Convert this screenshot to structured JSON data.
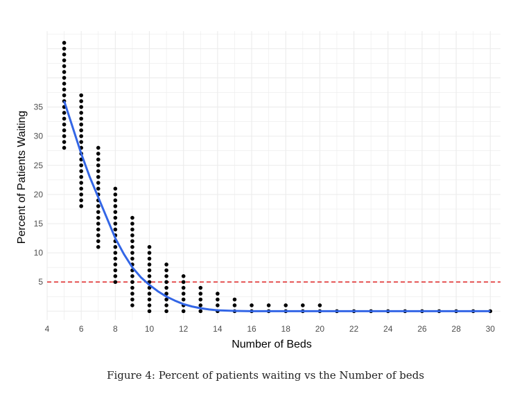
{
  "chart_data": {
    "type": "scatter",
    "xlabel": "Number of Beds",
    "ylabel": "Percent of Patients Waiting",
    "xlim": [
      4,
      30.6
    ],
    "ylim": [
      -1.5,
      48
    ],
    "x_ticks": [
      4,
      6,
      8,
      10,
      12,
      14,
      16,
      18,
      20,
      22,
      24,
      26,
      28,
      30
    ],
    "y_ticks": [
      5,
      10,
      15,
      20,
      25,
      30,
      35
    ],
    "grid": true,
    "colors": {
      "points": "#000000",
      "curve": "#3366e6",
      "threshold": "#dd2222",
      "grid": "#ebebeb"
    },
    "scatter": [
      {
        "x": 5,
        "y_min": 28,
        "y_max": 46
      },
      {
        "x": 6,
        "y_min": 18,
        "y_max": 37
      },
      {
        "x": 7,
        "y_min": 11,
        "y_max": 28
      },
      {
        "x": 8,
        "y_min": 5,
        "y_max": 21
      },
      {
        "x": 9,
        "y_min": 1,
        "y_max": 16
      },
      {
        "x": 10,
        "y_min": 0,
        "y_max": 11
      },
      {
        "x": 11,
        "y_min": 0,
        "y_max": 8
      },
      {
        "x": 12,
        "y_min": 0,
        "y_max": 6
      },
      {
        "x": 13,
        "y_min": 0,
        "y_max": 4
      },
      {
        "x": 14,
        "y_min": 0,
        "y_max": 3
      },
      {
        "x": 15,
        "y_min": 0,
        "y_max": 2
      },
      {
        "x": 16,
        "y_min": 0,
        "y_max": 1
      },
      {
        "x": 17,
        "y_min": 0,
        "y_max": 1
      },
      {
        "x": 18,
        "y_min": 0,
        "y_max": 1
      },
      {
        "x": 19,
        "y_min": 0,
        "y_max": 1
      },
      {
        "x": 20,
        "y_min": 0,
        "y_max": 1
      },
      {
        "x": 21,
        "y_min": 0,
        "y_max": 0
      },
      {
        "x": 22,
        "y_min": 0,
        "y_max": 0
      },
      {
        "x": 23,
        "y_min": 0,
        "y_max": 0
      },
      {
        "x": 24,
        "y_min": 0,
        "y_max": 0
      },
      {
        "x": 25,
        "y_min": 0,
        "y_max": 0
      },
      {
        "x": 26,
        "y_min": 0,
        "y_max": 0
      },
      {
        "x": 27,
        "y_min": 0,
        "y_max": 0
      },
      {
        "x": 28,
        "y_min": 0,
        "y_max": 0
      },
      {
        "x": 29,
        "y_min": 0,
        "y_max": 0
      },
      {
        "x": 30,
        "y_min": 0,
        "y_max": 0
      }
    ],
    "fit_curve": {
      "x": [
        5,
        5.5,
        6,
        6.5,
        7,
        7.5,
        8,
        8.5,
        9,
        9.5,
        10,
        10.5,
        11,
        11.5,
        12,
        12.5,
        13,
        13.5,
        14,
        15,
        16,
        17,
        18,
        20,
        22,
        24,
        26,
        28,
        30
      ],
      "y": [
        36,
        31.5,
        27,
        23,
        19.5,
        16,
        12.5,
        9.8,
        7.5,
        5.8,
        4.5,
        3.4,
        2.5,
        1.8,
        1.2,
        0.8,
        0.5,
        0.3,
        0.15,
        0.05,
        0,
        0,
        0,
        0,
        0,
        0,
        0,
        0,
        0
      ]
    },
    "threshold": 5
  },
  "caption": "Figure 4: Percent of patients waiting vs the Number of beds"
}
